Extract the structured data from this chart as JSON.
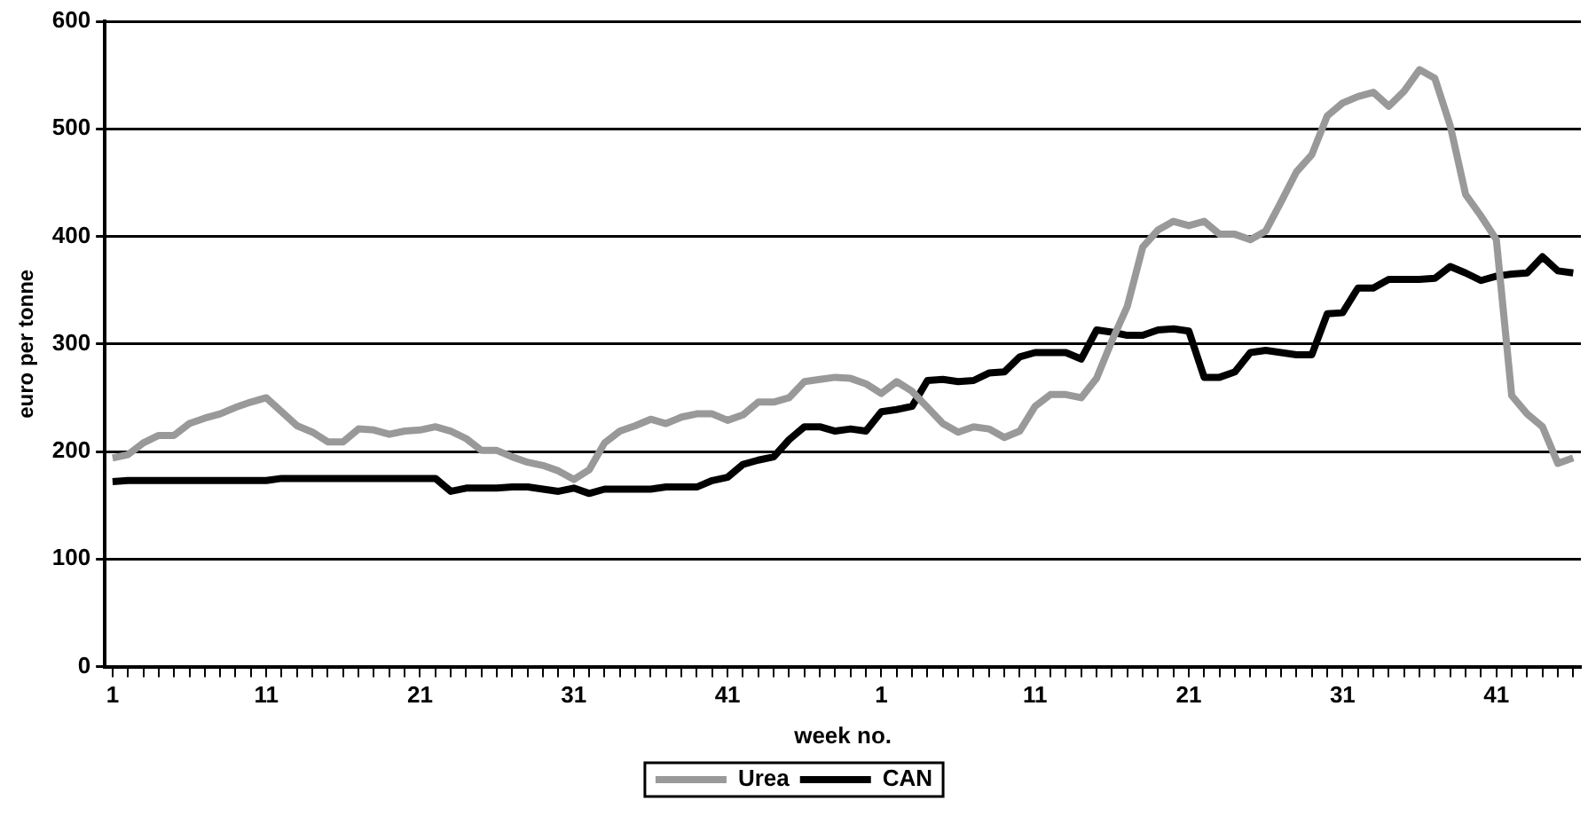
{
  "chart_data": {
    "type": "line",
    "xlabel": "week no.",
    "ylabel": "euro per tonne",
    "categories": [
      "1",
      null,
      null,
      null,
      null,
      null,
      null,
      null,
      null,
      null,
      "11",
      null,
      null,
      null,
      null,
      null,
      null,
      null,
      null,
      null,
      "21",
      null,
      null,
      null,
      null,
      null,
      null,
      null,
      null,
      null,
      "31",
      null,
      null,
      null,
      null,
      null,
      null,
      null,
      null,
      null,
      "41",
      null,
      null,
      null,
      null,
      null,
      null,
      null,
      null,
      null,
      "1",
      null,
      null,
      null,
      null,
      null,
      null,
      null,
      null,
      null,
      "11",
      null,
      null,
      null,
      null,
      null,
      null,
      null,
      null,
      null,
      "21",
      null,
      null,
      null,
      null,
      null,
      null,
      null,
      null,
      null,
      "31",
      null,
      null,
      null,
      null,
      null,
      null,
      null,
      null,
      null,
      "41",
      null,
      null,
      null,
      null,
      null
    ],
    "series": [
      {
        "name": "Urea",
        "color": "#999999",
        "values": [
          194,
          197,
          208,
          215,
          215,
          226,
          231,
          235,
          241,
          246,
          250,
          237,
          224,
          218,
          209,
          209,
          221,
          220,
          216,
          219,
          220,
          223,
          219,
          212,
          201,
          201,
          195,
          190,
          187,
          182,
          174,
          183,
          208,
          219,
          224,
          230,
          226,
          232,
          235,
          235,
          229,
          234,
          246,
          246,
          250,
          265,
          267,
          269,
          268,
          263,
          254,
          265,
          256,
          241,
          226,
          218,
          223,
          221,
          213,
          219,
          242,
          253,
          253,
          250,
          268,
          303,
          335,
          390,
          406,
          414,
          410,
          414,
          402,
          402,
          397,
          405,
          432,
          460,
          476,
          512,
          524,
          530,
          534,
          521,
          535,
          555,
          547,
          503,
          439,
          419,
          397,
          252,
          235,
          223,
          189,
          194
        ]
      },
      {
        "name": "CAN",
        "color": "#000000",
        "values": [
          172,
          173,
          173,
          173,
          173,
          173,
          173,
          173,
          173,
          173,
          173,
          175,
          175,
          175,
          175,
          175,
          175,
          175,
          175,
          175,
          175,
          175,
          163,
          166,
          166,
          166,
          167,
          167,
          165,
          163,
          166,
          161,
          165,
          165,
          165,
          165,
          167,
          167,
          167,
          173,
          176,
          188,
          192,
          195,
          211,
          223,
          223,
          219,
          221,
          219,
          237,
          239,
          242,
          266,
          267,
          265,
          266,
          273,
          274,
          288,
          292,
          292,
          292,
          286,
          313,
          311,
          308,
          308,
          313,
          314,
          312,
          269,
          269,
          274,
          292,
          294,
          292,
          290,
          290,
          328,
          329,
          352,
          352,
          360,
          360,
          360,
          361,
          372,
          366,
          359,
          363,
          365,
          366,
          381,
          368,
          366
        ]
      }
    ],
    "ylim": [
      0,
      600
    ],
    "yticks": [
      0,
      100,
      200,
      300,
      400,
      500,
      600
    ],
    "grid": "y",
    "legend": "bottom",
    "line_style": "solid",
    "marker": "none"
  }
}
